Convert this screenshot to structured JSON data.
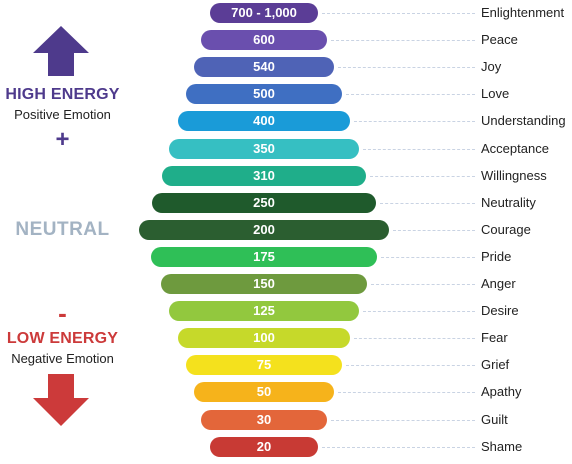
{
  "high": {
    "title": "HIGH ENERGY",
    "subtitle": "Positive Emotion",
    "sign": "+",
    "color": "#4e3a8c",
    "arrow_icon": "arrow-up-icon"
  },
  "neutral": {
    "title": "NEUTRAL",
    "color": "#a3b3c3"
  },
  "low": {
    "title": "LOW ENERGY",
    "subtitle": "Negative Emotion",
    "sign": "-",
    "color": "#cc3a3a",
    "arrow_icon": "arrow-down-icon"
  },
  "levels": [
    {
      "value": "700 - 1,000",
      "name": "Enlightenment",
      "color": "#5b3d96"
    },
    {
      "value": "600",
      "name": "Peace",
      "color": "#6a4fae"
    },
    {
      "value": "540",
      "name": "Joy",
      "color": "#4f63b6"
    },
    {
      "value": "500",
      "name": "Love",
      "color": "#3f6fc2"
    },
    {
      "value": "400",
      "name": "Understanding",
      "color": "#1a9bd8"
    },
    {
      "value": "350",
      "name": "Acceptance",
      "color": "#36bfc2"
    },
    {
      "value": "310",
      "name": "Willingness",
      "color": "#1fae8a"
    },
    {
      "value": "250",
      "name": "Neutrality",
      "color": "#1f5a2c"
    },
    {
      "value": "200",
      "name": "Courage",
      "color": "#2b5e30"
    },
    {
      "value": "175",
      "name": "Pride",
      "color": "#2fbf57"
    },
    {
      "value": "150",
      "name": "Anger",
      "color": "#6e9a3e"
    },
    {
      "value": "125",
      "name": "Desire",
      "color": "#92c83e"
    },
    {
      "value": "100",
      "name": "Fear",
      "color": "#c6d92a"
    },
    {
      "value": "75",
      "name": "Grief",
      "color": "#f4e11d"
    },
    {
      "value": "50",
      "name": "Apathy",
      "color": "#f6b31b"
    },
    {
      "value": "30",
      "name": "Guilt",
      "color": "#e3663a"
    },
    {
      "value": "20",
      "name": "Shame",
      "color": "#c83a34"
    }
  ]
}
